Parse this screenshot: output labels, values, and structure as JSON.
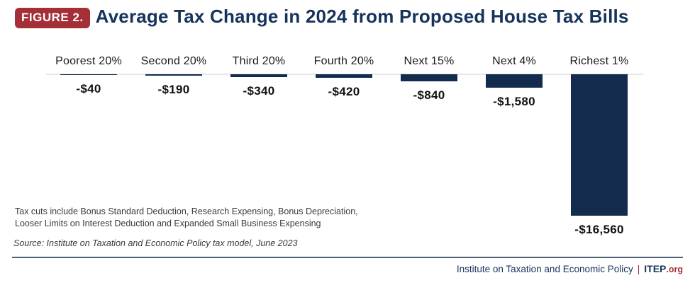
{
  "header": {
    "badge": "FIGURE 2.",
    "title": "Average Tax Change in 2024 from Proposed House Tax Bills"
  },
  "chart_data": {
    "type": "bar",
    "title": "Average Tax Change in 2024 from Proposed House Tax Bills",
    "categories": [
      "Poorest 20%",
      "Second 20%",
      "Third 20%",
      "Fourth 20%",
      "Next 15%",
      "Next 4%",
      "Richest 1%"
    ],
    "values": [
      -40,
      -190,
      -340,
      -420,
      -840,
      -1580,
      -16560
    ],
    "value_labels": [
      "-$40",
      "-$190",
      "-$340",
      "-$420",
      "-$840",
      "-$1,580",
      "-$16,560"
    ],
    "xlabel": "",
    "ylabel": "",
    "ylim": [
      -16560,
      0
    ],
    "orientation": "vertical-below-baseline",
    "grid": false,
    "legend": "none",
    "bar_color": "#132c4e",
    "baseline_color": "#e7e7e7"
  },
  "footnote": {
    "line1": "Tax cuts include Bonus Standard Deduction, Research Expensing, Bonus Depreciation,",
    "line2": "Looser Limits on Interest Deduction and Expanded Small Business Expensing",
    "source": "Source: Institute on Taxation and Economic Policy tax model, June 2023"
  },
  "footer": {
    "org_name": "Institute on Taxation and Economic Policy",
    "separator": "|",
    "brand": "ITEP",
    "brand_suffix": ".org"
  },
  "colors": {
    "bar_navy": "#132c4e",
    "title_navy": "#16335c",
    "badge_red": "#a42f36",
    "accent_red": "#a8333a",
    "baseline_gray": "#e7e7e7",
    "footer_line": "#4d6076",
    "text_black": "#1a1a1a",
    "text_gray": "#3a3a3a"
  }
}
